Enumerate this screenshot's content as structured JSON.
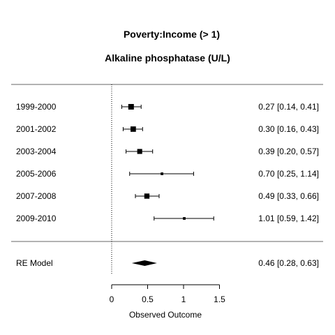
{
  "chart_data": {
    "type": "forest",
    "title": "Poverty:Income (> 1)",
    "subtitle": "Alkaline phosphatase (U/L)",
    "xlabel": "Observed Outcome",
    "xlim": [
      -0.05,
      1.55
    ],
    "xticks": [
      0,
      0.5,
      1,
      1.5
    ],
    "xtick_labels": [
      "0",
      "0.5",
      "1",
      "1.5"
    ],
    "reference_line": 0,
    "studies": [
      {
        "label": "1999-2000",
        "estimate": 0.27,
        "lower": 0.14,
        "upper": 0.41,
        "text": "0.27 [0.14, 0.41]",
        "weight": 1.0
      },
      {
        "label": "2001-2002",
        "estimate": 0.3,
        "lower": 0.16,
        "upper": 0.43,
        "text": "0.30 [0.16, 0.43]",
        "weight": 0.95
      },
      {
        "label": "2003-2004",
        "estimate": 0.39,
        "lower": 0.2,
        "upper": 0.57,
        "text": "0.39 [0.20, 0.57]",
        "weight": 0.85
      },
      {
        "label": "2005-2006",
        "estimate": 0.7,
        "lower": 0.25,
        "upper": 1.14,
        "text": "0.70 [0.25, 1.14]",
        "weight": 0.3
      },
      {
        "label": "2007-2008",
        "estimate": 0.49,
        "lower": 0.33,
        "upper": 0.66,
        "text": "0.49 [0.33, 0.66]",
        "weight": 0.9
      },
      {
        "label": "2009-2010",
        "estimate": 1.01,
        "lower": 0.59,
        "upper": 1.42,
        "text": "1.01 [0.59, 1.42]",
        "weight": 0.3
      }
    ],
    "summary": {
      "label": "RE Model",
      "estimate": 0.46,
      "lower": 0.28,
      "upper": 0.63,
      "text": "0.46 [0.28, 0.63]"
    }
  }
}
